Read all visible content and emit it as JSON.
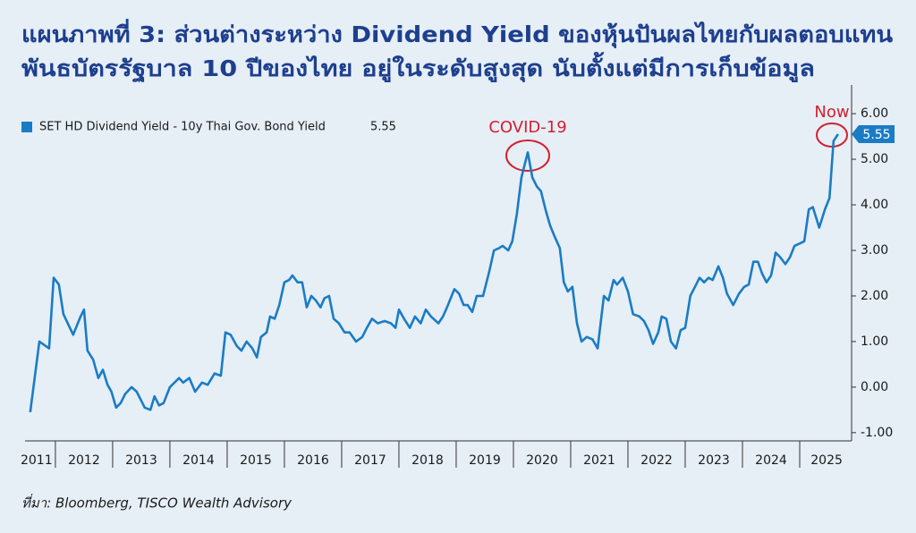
{
  "chart_data": {
    "type": "line",
    "title": [
      "แผนภาพที่ 3: ส่วนต่างระหว่าง Dividend Yield ของหุ้นปันผลไทยกับผลตอบแทน",
      "พันธบัตรรัฐบาล 10 ปีของไทย อยู่ในระดับสูงสุด นับตั้งแต่มีการเก็บข้อมูล"
    ],
    "source": "ที่มา: Bloomberg, TISCO Wealth Advisory",
    "annotations": [
      "COVID-19",
      "Now"
    ],
    "xlim": [
      2011.47,
      2025.875
    ],
    "xticks": [
      {
        "value": 2011.67,
        "label": "2011"
      },
      {
        "value": 2012.5,
        "label": "2012"
      },
      {
        "value": 2013.5,
        "label": "2013"
      },
      {
        "value": 2014.5,
        "label": "2014"
      },
      {
        "value": 2015.5,
        "label": "2015"
      },
      {
        "value": 2016.5,
        "label": "2016"
      },
      {
        "value": 2017.5,
        "label": "2017"
      },
      {
        "value": 2018.5,
        "label": "2018"
      },
      {
        "value": 2019.5,
        "label": "2019"
      },
      {
        "value": 2020.5,
        "label": "2020"
      },
      {
        "value": 2021.5,
        "label": "2021"
      },
      {
        "value": 2022.5,
        "label": "2022"
      },
      {
        "value": 2023.5,
        "label": "2023"
      },
      {
        "value": 2024.5,
        "label": "2024"
      },
      {
        "value": 2025.47,
        "label": "2025"
      }
    ],
    "ylim": [
      -1.18,
      6.63
    ],
    "yticks": [
      {
        "value": -1,
        "label": "-1.00"
      },
      {
        "value": 0,
        "label": "0.00"
      },
      {
        "value": 1,
        "label": "1.00"
      },
      {
        "value": 2,
        "label": "2.00"
      },
      {
        "value": 3,
        "label": "3.00"
      },
      {
        "value": 4,
        "label": "4.00"
      },
      {
        "value": 5,
        "label": "5.00"
      },
      {
        "value": 6,
        "label": "6.00"
      }
    ],
    "legend": "top-left",
    "x": [
      2011.56,
      2011.72,
      2011.89,
      2011.97,
      2012.06,
      2012.14,
      2012.31,
      2012.44,
      2012.5,
      2012.56,
      2012.66,
      2012.75,
      2012.83,
      2012.91,
      2012.98,
      2013.06,
      2013.14,
      2013.22,
      2013.33,
      2013.42,
      2013.56,
      2013.66,
      2013.73,
      2013.81,
      2013.89,
      2014.0,
      2014.16,
      2014.23,
      2014.34,
      2014.44,
      2014.56,
      2014.66,
      2014.78,
      2014.89,
      2014.97,
      2015.06,
      2015.17,
      2015.25,
      2015.34,
      2015.44,
      2015.52,
      2015.59,
      2015.69,
      2015.75,
      2015.83,
      2015.91,
      2016.0,
      2016.08,
      2016.14,
      2016.23,
      2016.31,
      2016.39,
      2016.47,
      2016.55,
      2016.63,
      2016.7,
      2016.78,
      2016.86,
      2016.95,
      2017.05,
      2017.14,
      2017.25,
      2017.36,
      2017.44,
      2017.53,
      2017.63,
      2017.75,
      2017.86,
      2017.94,
      2018.0,
      2018.09,
      2018.19,
      2018.28,
      2018.38,
      2018.47,
      2018.56,
      2018.69,
      2018.77,
      2018.84,
      2018.97,
      2019.05,
      2019.13,
      2019.2,
      2019.28,
      2019.36,
      2019.47,
      2019.58,
      2019.66,
      2019.75,
      2019.81,
      2019.91,
      2019.98,
      2020.06,
      2020.14,
      2020.25,
      2020.33,
      2020.41,
      2020.48,
      2020.56,
      2020.64,
      2020.72,
      2020.81,
      2020.88,
      2020.95,
      2021.03,
      2021.11,
      2021.19,
      2021.28,
      2021.38,
      2021.47,
      2021.58,
      2021.66,
      2021.75,
      2021.81,
      2021.91,
      2022.0,
      2022.09,
      2022.2,
      2022.28,
      2022.36,
      2022.44,
      2022.53,
      2022.59,
      2022.67,
      2022.75,
      2022.84,
      2022.92,
      2023.0,
      2023.09,
      2023.17,
      2023.25,
      2023.33,
      2023.41,
      2023.48,
      2023.58,
      2023.66,
      2023.73,
      2023.84,
      2023.94,
      2024.03,
      2024.11,
      2024.19,
      2024.27,
      2024.34,
      2024.42,
      2024.5,
      2024.58,
      2024.66,
      2024.75,
      2024.83,
      2024.91,
      2025.0,
      2025.08,
      2025.16,
      2025.23,
      2025.34,
      2025.44,
      2025.52,
      2025.59,
      2025.67
    ],
    "series": [
      {
        "name": "SET HD Dividend Yield - 10y Thai Gov. Bond Yield",
        "color": "#1a7cc4",
        "values": [
          -0.55,
          1.0,
          0.85,
          2.4,
          2.25,
          1.6,
          1.15,
          1.55,
          1.7,
          0.8,
          0.6,
          0.2,
          0.38,
          0.05,
          -0.1,
          -0.45,
          -0.35,
          -0.15,
          0.0,
          -0.1,
          -0.45,
          -0.5,
          -0.2,
          -0.4,
          -0.35,
          0.0,
          0.2,
          0.1,
          0.2,
          -0.1,
          0.1,
          0.05,
          0.3,
          0.25,
          1.2,
          1.15,
          0.9,
          0.8,
          1.0,
          0.85,
          0.65,
          1.1,
          1.2,
          1.55,
          1.5,
          1.8,
          2.3,
          2.35,
          2.45,
          2.3,
          2.3,
          1.75,
          2.0,
          1.9,
          1.75,
          1.95,
          2.0,
          1.5,
          1.4,
          1.2,
          1.2,
          1.0,
          1.1,
          1.3,
          1.5,
          1.4,
          1.45,
          1.4,
          1.3,
          1.7,
          1.5,
          1.3,
          1.55,
          1.4,
          1.7,
          1.55,
          1.4,
          1.55,
          1.75,
          2.15,
          2.05,
          1.8,
          1.8,
          1.65,
          2.0,
          2.0,
          2.55,
          3.0,
          3.05,
          3.1,
          3.0,
          3.2,
          3.8,
          4.6,
          5.15,
          4.6,
          4.4,
          4.3,
          3.9,
          3.55,
          3.3,
          3.05,
          2.3,
          2.1,
          2.2,
          1.4,
          1.0,
          1.1,
          1.05,
          0.85,
          2.0,
          1.9,
          2.35,
          2.25,
          2.4,
          2.1,
          1.6,
          1.55,
          1.45,
          1.25,
          0.95,
          1.2,
          1.55,
          1.5,
          1.0,
          0.85,
          1.25,
          1.3,
          2.0,
          2.2,
          2.4,
          2.3,
          2.4,
          2.35,
          2.65,
          2.4,
          2.05,
          1.8,
          2.05,
          2.2,
          2.25,
          2.75,
          2.75,
          2.5,
          2.3,
          2.45,
          2.95,
          2.85,
          2.7,
          2.85,
          3.1,
          3.15,
          3.2,
          3.9,
          3.95,
          3.5,
          3.9,
          4.15,
          5.4,
          5.55
        ]
      }
    ]
  }
}
